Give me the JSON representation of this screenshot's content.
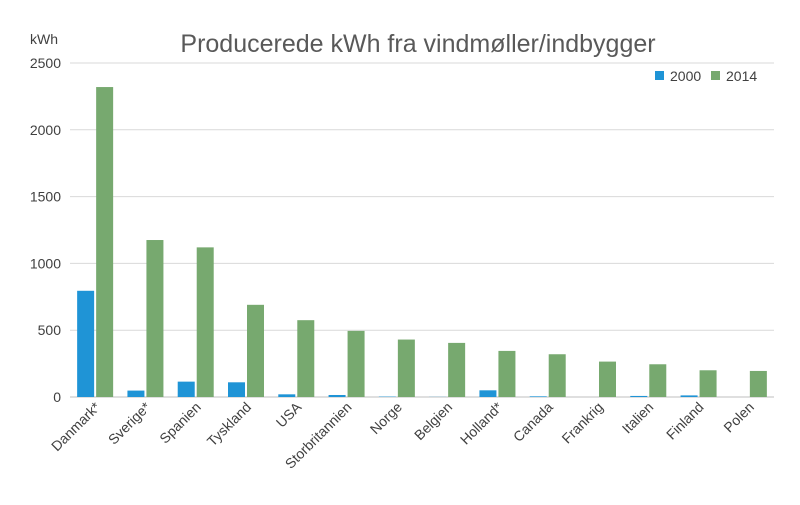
{
  "chart_data": {
    "type": "bar",
    "title": "Producerede kWh fra vindmøller/indbygger",
    "ylabel": "kWh",
    "xlabel": "",
    "ylim": [
      0,
      2500
    ],
    "yticks": [
      0,
      500,
      1000,
      1500,
      2000,
      2500
    ],
    "grid": true,
    "legend_position": "top-right",
    "categories": [
      "Danmark*",
      "Sverige*",
      "Spanien",
      "Tyskland",
      "USA",
      "Storbritannien",
      "Norge",
      "Belgien",
      "Holland*",
      "Canada",
      "Frankrig",
      "Italien",
      "Finland",
      "Polen"
    ],
    "series": [
      {
        "name": "2000",
        "color": "#1f94d6",
        "values": [
          795,
          48,
          115,
          110,
          20,
          15,
          3,
          1,
          50,
          5,
          0,
          8,
          12,
          0
        ]
      },
      {
        "name": "2014",
        "color": "#77a96f",
        "values": [
          2320,
          1175,
          1120,
          690,
          575,
          495,
          430,
          405,
          345,
          320,
          265,
          245,
          200,
          195
        ]
      }
    ]
  }
}
